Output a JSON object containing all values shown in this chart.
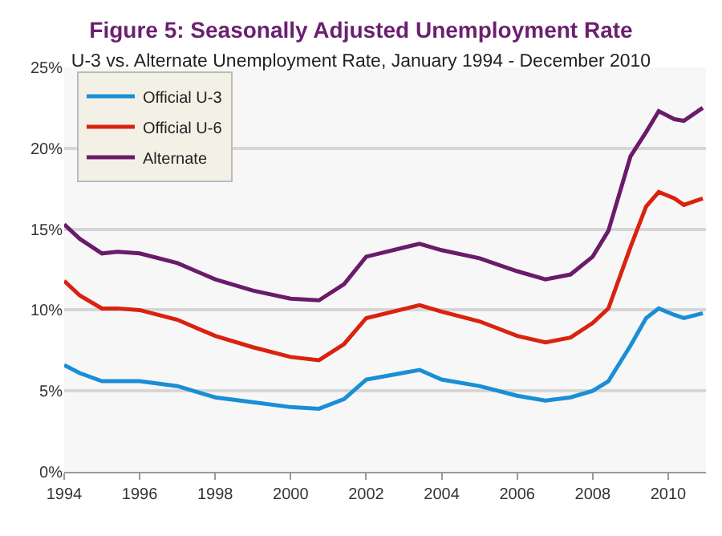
{
  "chart_data": {
    "type": "line",
    "title": "Figure 5: Seasonally Adjusted Unemployment Rate",
    "subtitle": "U-3 vs. Alternate Unemployment Rate, January 1994 - December 2010",
    "x": [
      "1994-01",
      "1994-06",
      "1995-01",
      "1995-06",
      "1996-01",
      "1997-01",
      "1998-01",
      "1999-01",
      "2000-01",
      "2000-10",
      "2001-06",
      "2002-01",
      "2003-06",
      "2004-01",
      "2005-01",
      "2006-01",
      "2006-10",
      "2007-06",
      "2008-01",
      "2008-06",
      "2009-01",
      "2009-06",
      "2009-10",
      "2010-03",
      "2010-06",
      "2010-12"
    ],
    "series": [
      {
        "name": "Official U-3",
        "color": "#1a8ed6",
        "values": [
          6.6,
          6.1,
          5.6,
          5.6,
          5.6,
          5.3,
          4.6,
          4.3,
          4.0,
          3.9,
          4.5,
          5.7,
          6.3,
          5.7,
          5.3,
          4.7,
          4.4,
          4.6,
          5.0,
          5.6,
          7.8,
          9.5,
          10.1,
          9.7,
          9.5,
          9.8
        ]
      },
      {
        "name": "Official U-6",
        "color": "#d9230f",
        "values": [
          11.8,
          10.9,
          10.1,
          10.1,
          10.0,
          9.4,
          8.4,
          7.7,
          7.1,
          6.9,
          7.9,
          9.5,
          10.3,
          9.9,
          9.3,
          8.4,
          8.0,
          8.3,
          9.2,
          10.1,
          13.9,
          16.4,
          17.3,
          16.9,
          16.5,
          16.9
        ]
      },
      {
        "name": "Alternate",
        "color": "#6a1b6a",
        "values": [
          15.3,
          14.4,
          13.5,
          13.6,
          13.5,
          12.9,
          11.9,
          11.2,
          10.7,
          10.6,
          11.6,
          13.3,
          14.1,
          13.7,
          13.2,
          12.4,
          11.9,
          12.2,
          13.3,
          14.9,
          19.5,
          21.0,
          22.3,
          21.8,
          21.7,
          22.5
        ]
      }
    ],
    "xlim": [
      "1994-01",
      "2011-01"
    ],
    "xticks": [
      "1994",
      "1996",
      "1998",
      "2000",
      "2002",
      "2004",
      "2006",
      "2008",
      "2010"
    ],
    "ylim": [
      0,
      25
    ],
    "yticks": [
      {
        "value": 0,
        "label": "0%"
      },
      {
        "value": 5,
        "label": "5%"
      },
      {
        "value": 10,
        "label": "10%"
      },
      {
        "value": 15,
        "label": "15%"
      },
      {
        "value": 20,
        "label": "20%"
      },
      {
        "value": 25,
        "label": "25%"
      }
    ],
    "grid": "y",
    "legend": "top left",
    "line_style": "solid",
    "marker": "none"
  }
}
